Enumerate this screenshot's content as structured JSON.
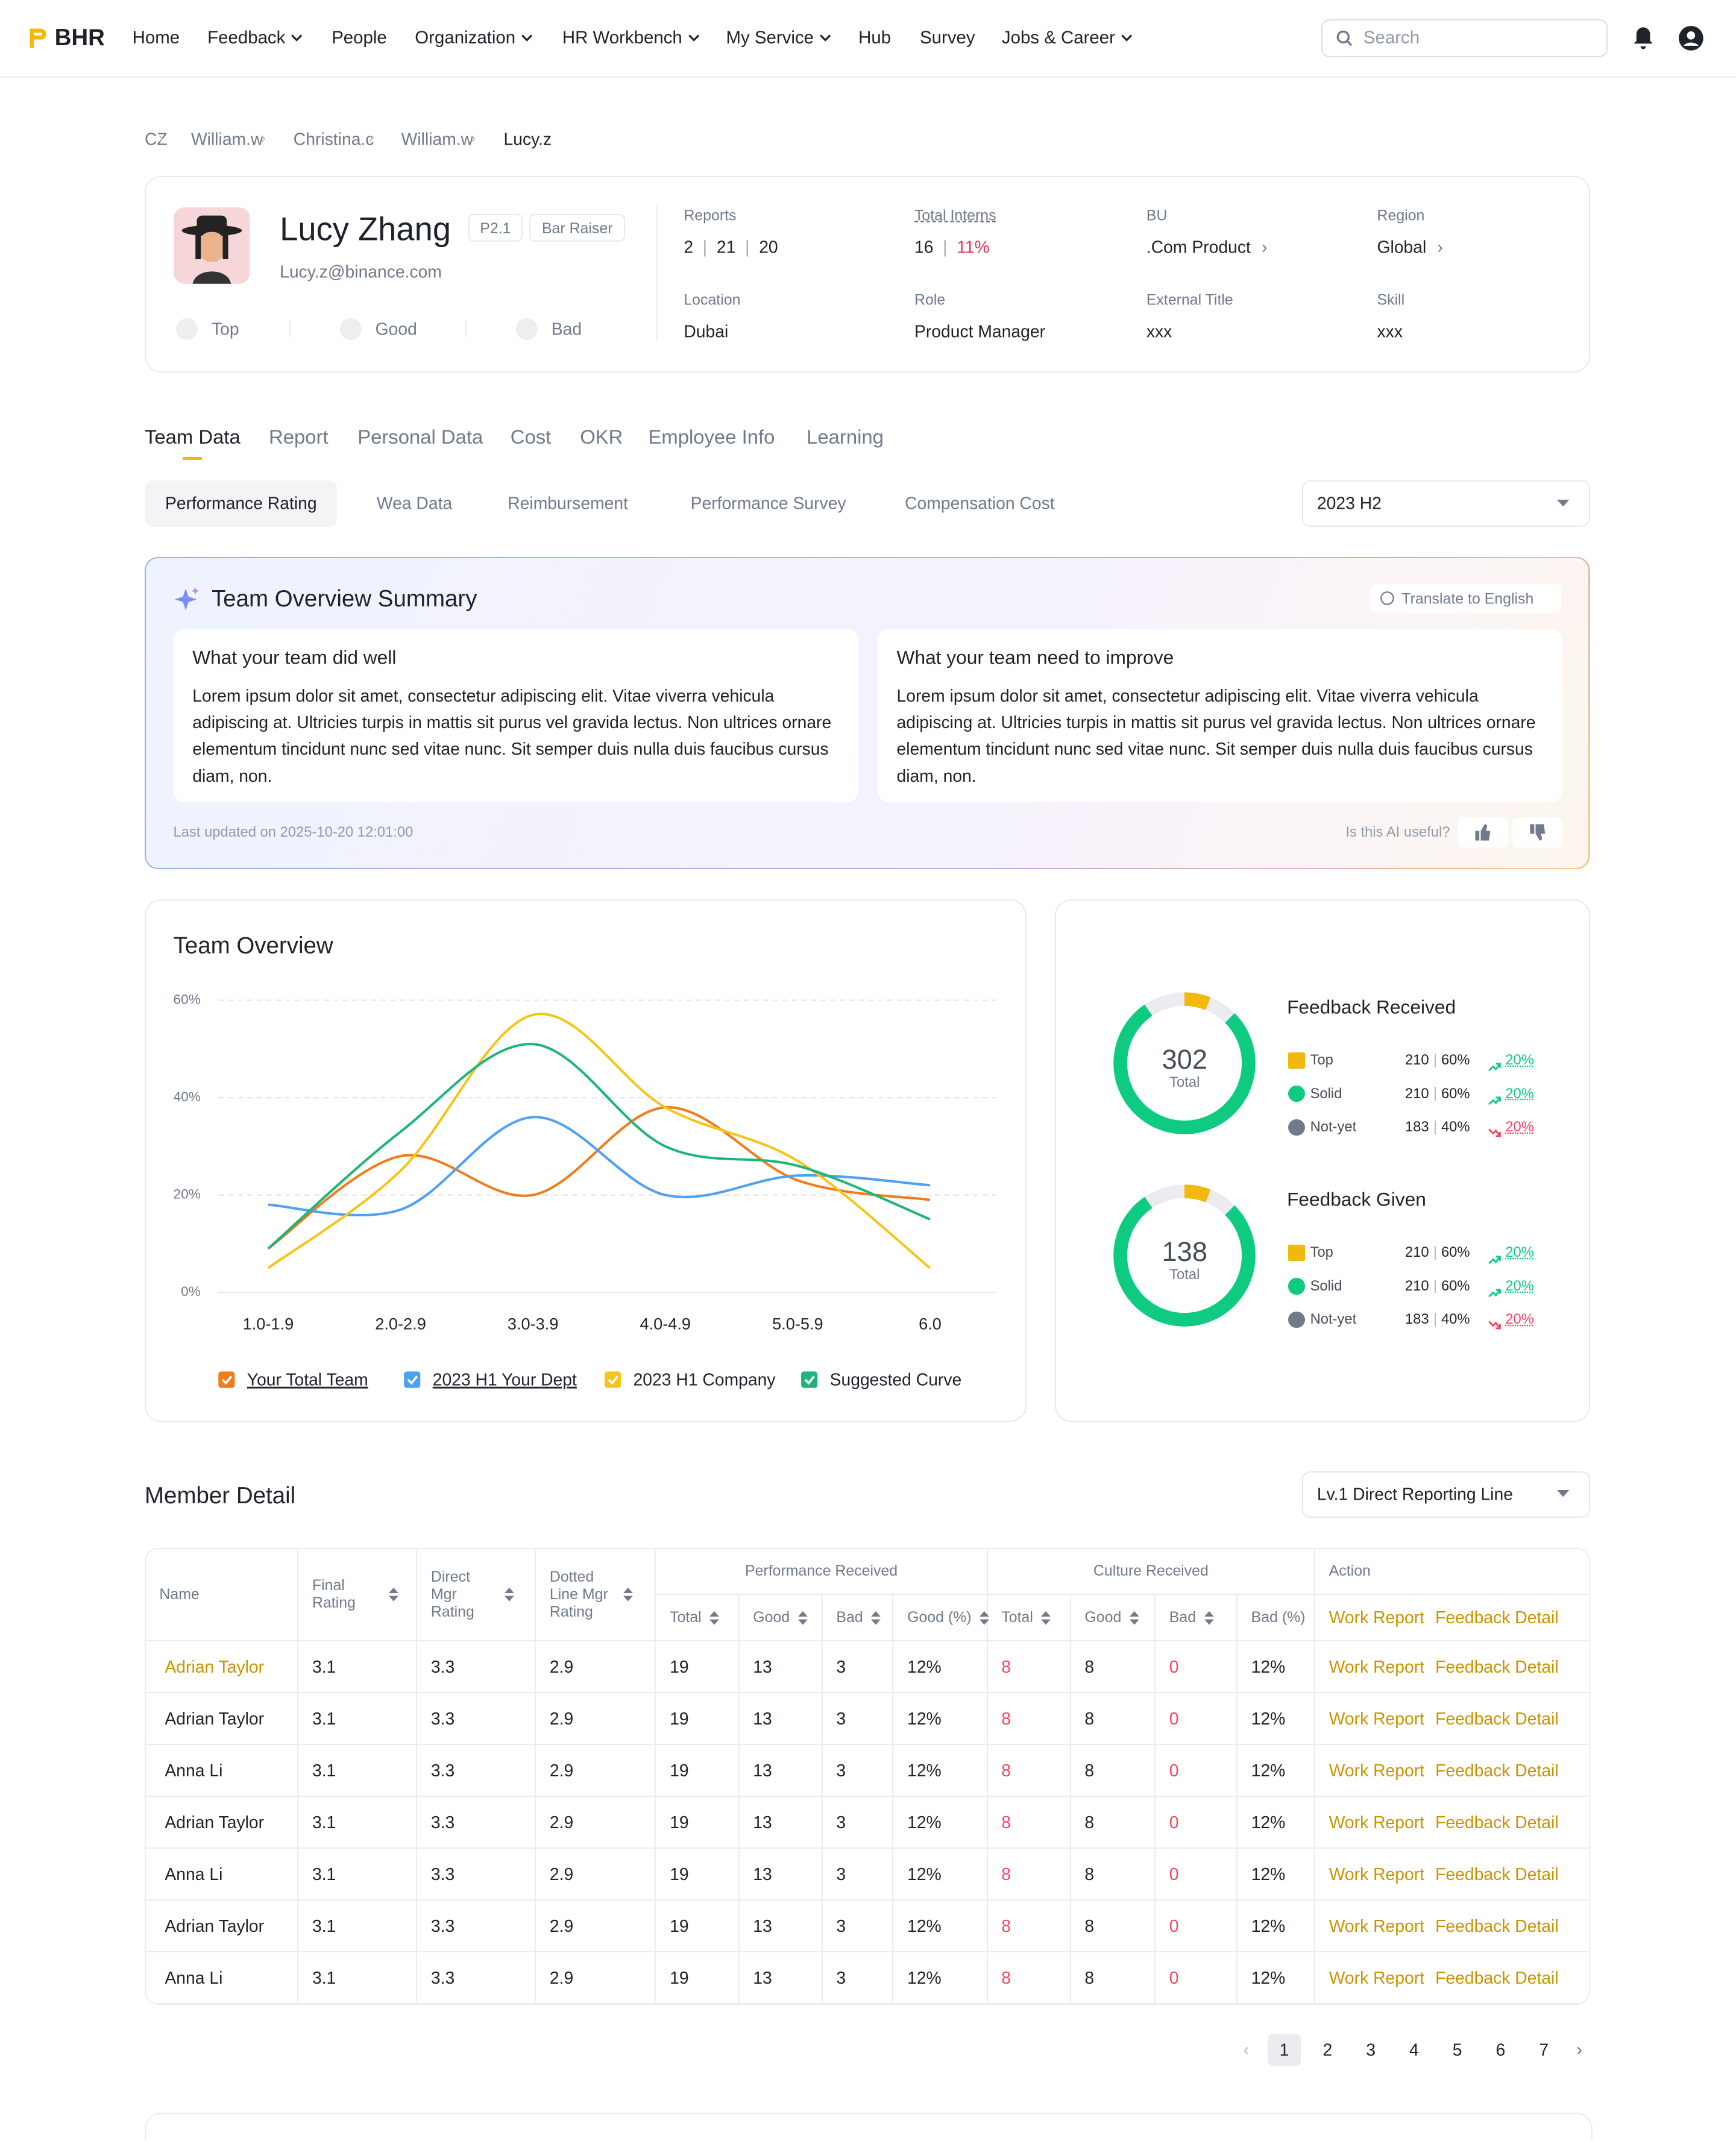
{
  "nav": {
    "logo": "BHR",
    "items": [
      "Home",
      "Feedback",
      "People",
      "Organization",
      "HR Workbench",
      "My Service",
      "Hub",
      "Survey",
      "Jobs & Career"
    ],
    "search": "Search"
  },
  "breadcrumb": [
    "CZ",
    "William.w",
    "Christina.c",
    "William.w",
    "Lucy.z"
  ],
  "profile": {
    "name": "Lucy Zhang",
    "level": "P2.1",
    "badge": "Bar Raiser",
    "email": "Lucy.z@binance.com",
    "ratings": [
      "Top",
      "Good",
      "Bad"
    ],
    "reports": {
      "label": "Reports",
      "values": [
        2,
        21,
        20
      ]
    },
    "interns": {
      "label": "Total Interns",
      "value": 16,
      "share": "11%"
    },
    "fields": [
      {
        "label": "BU",
        "value": ".Com Product"
      },
      {
        "label": "Region",
        "value": "Global"
      },
      {
        "label": "Location",
        "value": "Dubai"
      },
      {
        "label": "Role",
        "value": "Product Manager"
      },
      {
        "label": "External Title",
        "value": "xxx"
      },
      {
        "label": "Skill",
        "value": "xxx"
      }
    ]
  },
  "tabs": [
    "Team Data",
    "Report",
    "Personal Data",
    "Cost",
    "OKR",
    "Employee Info",
    "Learning"
  ],
  "subtabs": [
    "Performance Rating",
    "Wea Data",
    "Reimbursement",
    "Performance Survey",
    "Compensation Cost"
  ],
  "period": "2023 H2",
  "summary": {
    "title": "Team Overview Summary",
    "translate": "Translate to English",
    "boxes": [
      {
        "title": "What your team did well",
        "text": "Lorem ipsum dolor sit amet, consectetur adipiscing elit. Vitae viverra vehicula adipiscing at. Ultricies turpis in mattis sit purus vel gravida lectus. Non ultrices ornare elementum tincidunt nunc sed vitae nunc. Sit semper duis nulla duis faucibus cursus diam, non."
      },
      {
        "title": "What your team need to improve",
        "text": "Lorem ipsum dolor sit amet, consectetur adipiscing elit. Vitae viverra vehicula adipiscing at. Ultricies turpis in mattis sit purus vel gravida lectus. Non ultrices ornare elementum tincidunt nunc sed vitae nunc. Sit semper duis nulla duis faucibus cursus diam, non."
      }
    ],
    "updated": "Last updated on 2025-10-20 12:01:00",
    "useful": "Is this AI useful?"
  },
  "chart_data": {
    "type": "line",
    "title": "Team Overview",
    "categories": [
      "1.0-1.9",
      "2.0-2.9",
      "3.0-3.9",
      "4.0-4.9",
      "5.0-5.9",
      "6.0"
    ],
    "ylim": [
      0,
      60
    ],
    "yticks": [
      {
        "value": 0,
        "label": "0%"
      },
      {
        "value": 20,
        "label": "20%"
      },
      {
        "value": 40,
        "label": "40%"
      },
      {
        "value": 60,
        "label": "60%"
      }
    ],
    "grid": true,
    "series": [
      {
        "name": "Your Total Team",
        "color": "#f07c1c",
        "values": [
          9,
          28,
          20,
          38,
          23,
          19
        ]
      },
      {
        "name": "2023 H1 Your Dept",
        "color": "#4ea1f0",
        "values": [
          18,
          17,
          36,
          20,
          24,
          22
        ]
      },
      {
        "name": "2023 H1 Company",
        "color": "#f5c518",
        "values": [
          5,
          25,
          57,
          38,
          27,
          5
        ]
      },
      {
        "name": "Suggested Curve",
        "color": "#1fb57a",
        "values": [
          9,
          33,
          51,
          30,
          26,
          15
        ]
      }
    ]
  },
  "feedback": [
    {
      "title": "Feedback Received",
      "total": 302,
      "total_label": "Total",
      "rows": [
        {
          "label": "Top",
          "count": 210,
          "share": "60%",
          "change": "20%",
          "trend": "up"
        },
        {
          "label": "Solid",
          "count": 210,
          "share": "60%",
          "change": "20%",
          "trend": "up"
        },
        {
          "label": "Not-yet",
          "count": 183,
          "share": "40%",
          "change": "20%",
          "trend": "down"
        }
      ]
    },
    {
      "title": "Feedback Given",
      "total": 138,
      "total_label": "Total",
      "rows": [
        {
          "label": "Top",
          "count": 210,
          "share": "60%",
          "change": "20%",
          "trend": "up"
        },
        {
          "label": "Solid",
          "count": 210,
          "share": "60%",
          "change": "20%",
          "trend": "up"
        },
        {
          "label": "Not-yet",
          "count": 183,
          "share": "40%",
          "change": "20%",
          "trend": "down"
        }
      ]
    }
  ],
  "members": {
    "title": "Member Detail",
    "filter": "Lv.1 Direct Reporting Line",
    "columns": [
      "Name",
      "Final Rating",
      "Direct Mgr Rating",
      "Dotted Line Mgr Rating"
    ],
    "groups": [
      {
        "title": "Performance Received",
        "columns": [
          "Total",
          "Good",
          "Bad",
          "Good (%)"
        ]
      },
      {
        "title": "Culture Received",
        "columns": [
          "Total",
          "Good",
          "Bad",
          "Bad (%)"
        ]
      }
    ],
    "action": "Action",
    "actions": [
      "Work Report",
      "Feedback Detail"
    ],
    "rows": [
      [
        "Adrian Taylor",
        3.1,
        3.3,
        2.9,
        19,
        13,
        3,
        "12%",
        8,
        8,
        0,
        "12%"
      ],
      [
        "Adrian Taylor",
        3.1,
        3.3,
        2.9,
        19,
        13,
        3,
        "12%",
        8,
        8,
        0,
        "12%"
      ],
      [
        "Anna Li",
        3.1,
        3.3,
        2.9,
        19,
        13,
        3,
        "12%",
        8,
        8,
        0,
        "12%"
      ],
      [
        "Adrian Taylor",
        3.1,
        3.3,
        2.9,
        19,
        13,
        3,
        "12%",
        8,
        8,
        0,
        "12%"
      ],
      [
        "Anna Li",
        3.1,
        3.3,
        2.9,
        19,
        13,
        3,
        "12%",
        8,
        8,
        0,
        "12%"
      ],
      [
        "Adrian Taylor",
        3.1,
        3.3,
        2.9,
        19,
        13,
        3,
        "12%",
        8,
        8,
        0,
        "12%"
      ],
      [
        "Anna Li",
        3.1,
        3.3,
        2.9,
        19,
        13,
        3,
        "12%",
        8,
        8,
        0,
        "12%"
      ]
    ],
    "pages": [
      1,
      2,
      3,
      4,
      5,
      6,
      7
    ]
  }
}
